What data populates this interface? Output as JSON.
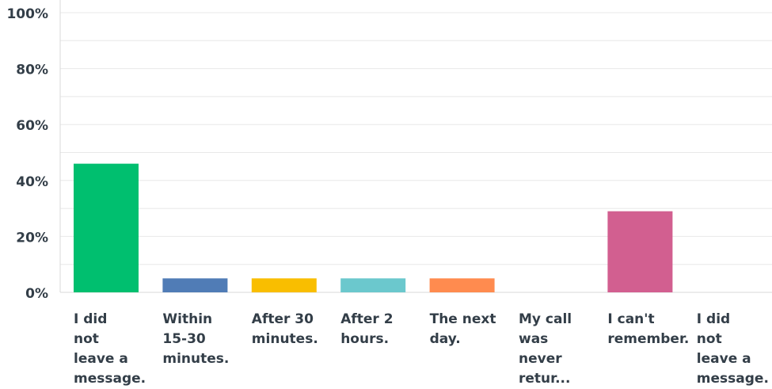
{
  "chart_data": {
    "type": "bar",
    "categories": [
      "I did not leave a message.",
      "Within 15-30 minutes.",
      "After 30 minutes.",
      "After 2 hours.",
      "The next day.",
      "My call was never retur...",
      "I can't remember.",
      "I did not leave a message."
    ],
    "values": [
      46,
      5,
      5,
      5,
      5,
      0,
      29,
      0
    ],
    "colors": [
      "#00bf6f",
      "#507cb6",
      "#f9be00",
      "#6bc8cd",
      "#ff8b4f",
      "#a87bd1",
      "#d25f90",
      "#dbcb5b"
    ],
    "ylim": [
      0,
      100
    ],
    "yticks": [
      {
        "value": 0,
        "label": "0%"
      },
      {
        "value": 20,
        "label": "20%"
      },
      {
        "value": 40,
        "label": "40%"
      },
      {
        "value": 60,
        "label": "60%"
      },
      {
        "value": 80,
        "label": "80%"
      },
      {
        "value": 100,
        "label": "100%"
      }
    ],
    "minor_yticks": [
      10,
      30,
      50,
      70,
      90
    ],
    "grid": true
  }
}
